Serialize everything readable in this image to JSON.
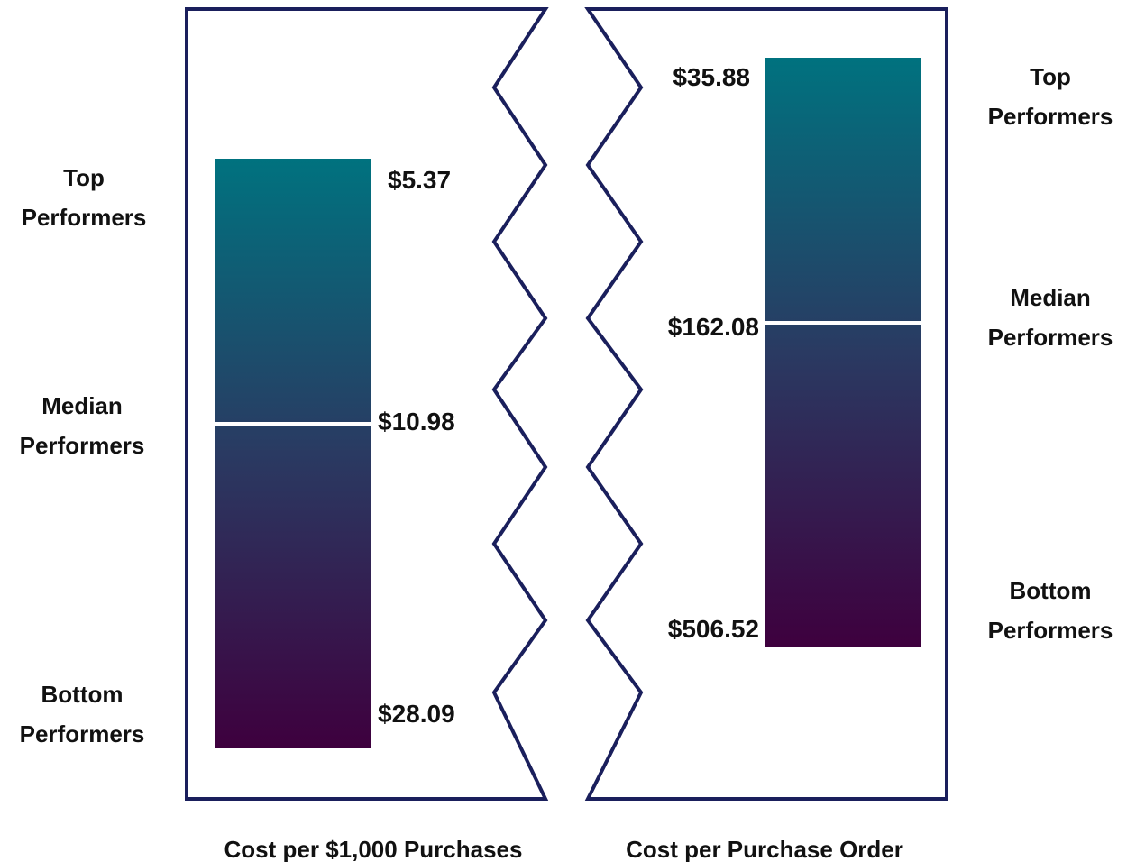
{
  "panels": [
    {
      "caption": "Cost per $1,000 Purchases",
      "tiers": [
        {
          "label": "Top Performers",
          "value": "$5.37"
        },
        {
          "label": "Median Performers",
          "value": "$10.98"
        },
        {
          "label": "Bottom Performers",
          "value": "$28.09"
        }
      ]
    },
    {
      "caption": "Cost per Purchase Order",
      "tiers": [
        {
          "label": "Top Performers",
          "value": "$35.88"
        },
        {
          "label": "Median Performers",
          "value": "$162.08"
        },
        {
          "label": "Bottom Performers",
          "value": "$506.52"
        }
      ]
    }
  ]
}
